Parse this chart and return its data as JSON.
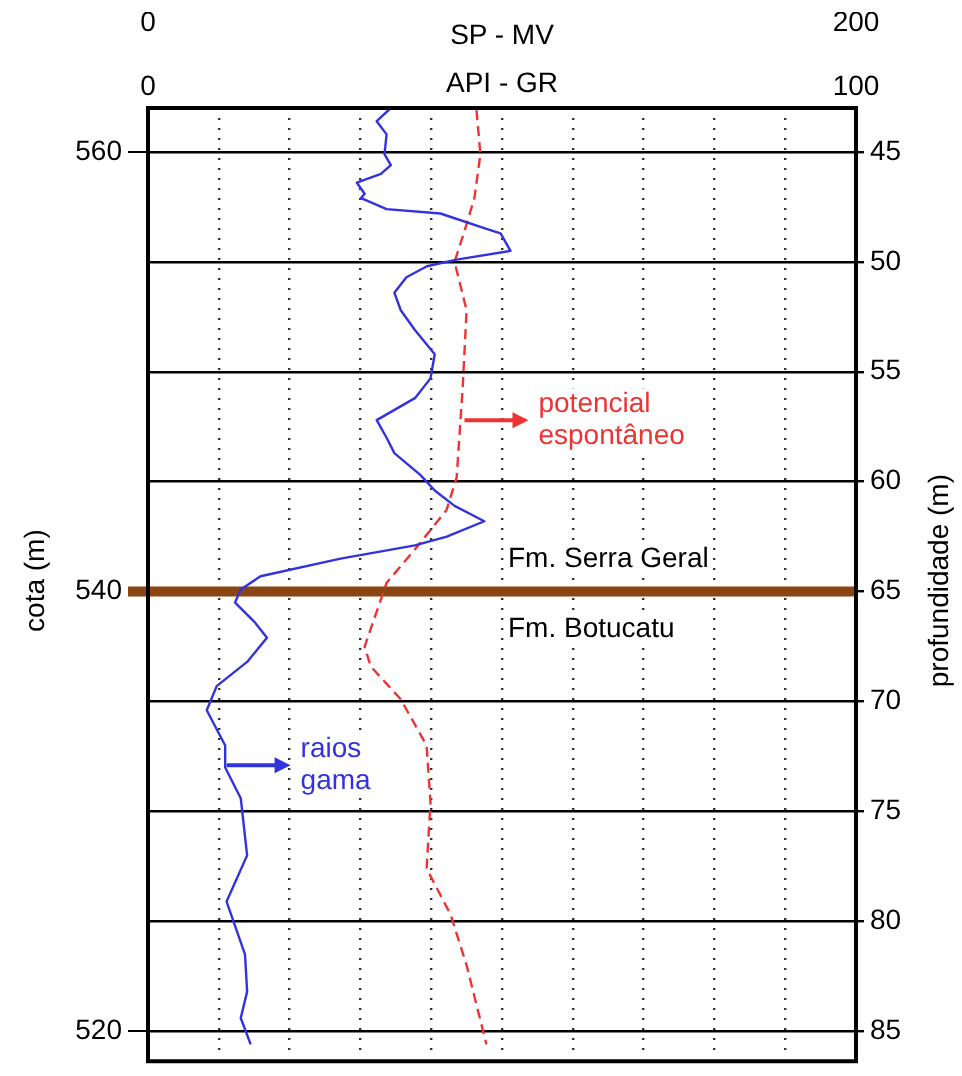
{
  "chart_data": {
    "type": "line",
    "xlabel": "API - GR",
    "x2label": "SP - MV",
    "ylabel": "cota (m)",
    "y2label": "profundidade (m)",
    "xlim": [
      0,
      100
    ],
    "xticks": [
      0,
      {
        "value": 10,
        "label": null
      },
      {
        "value": 20,
        "label": null
      },
      {
        "value": 30,
        "label": null
      },
      {
        "value": 40,
        "label": null
      },
      {
        "value": 50,
        "label": null
      },
      {
        "value": 60,
        "label": null
      },
      {
        "value": 70,
        "label": null
      },
      {
        "value": 80,
        "label": null
      },
      {
        "value": 90,
        "label": null
      },
      100
    ],
    "x2lim": [
      0,
      200
    ],
    "x2ticks": [
      0,
      200
    ],
    "ylim": [
      519,
      562
    ],
    "yticks": [
      520,
      540,
      560
    ],
    "y2lim": [
      86,
      43
    ],
    "y2ticks": [
      45,
      50,
      55,
      60,
      65,
      70,
      75,
      80,
      85
    ],
    "grid": true,
    "legend": false,
    "marker": "none",
    "series": [
      {
        "color": "#3333dd",
        "line_style": "solid",
        "x": [
          34.3,
          32.3,
          33.7,
          33.4,
          34.3,
          32.9,
          29.5,
          30.6,
          30.1,
          33.7,
          41.3,
          47.8,
          49.8,
          51.2,
          43.6,
          39.4,
          36.5,
          34.8,
          35.7,
          37.7,
          40.5,
          39.9,
          37.7,
          32.3,
          33.7,
          34.8,
          38.5,
          40.5,
          43.3,
          47.5,
          42.2,
          37.7,
          27.2,
          15.9,
          13.1,
          12.3,
          15.1,
          16.8,
          14.0,
          9.7,
          8.3,
          10.9,
          10.9,
          13.1,
          14.0,
          11.1,
          13.7,
          14.0,
          13.1,
          14.5
        ],
        "values": [
          562.0,
          561.4,
          560.8,
          559.9,
          559.4,
          559.0,
          558.6,
          558.1,
          557.9,
          557.4,
          557.2,
          556.5,
          556.3,
          555.5,
          555.1,
          554.8,
          554.3,
          553.6,
          552.8,
          551.9,
          550.8,
          549.7,
          548.8,
          547.8,
          547.0,
          546.3,
          545.3,
          544.6,
          543.9,
          543.2,
          542.5,
          542.1,
          541.5,
          540.7,
          540.1,
          539.5,
          538.6,
          537.9,
          536.8,
          535.7,
          534.6,
          533.0,
          532.0,
          530.6,
          528.0,
          525.9,
          523.5,
          521.8,
          520.6,
          519.4
        ]
      },
      {
        "color": "#ee3333",
        "line_style": "dashed",
        "axis": "x2",
        "x": [
          92.8,
          93.9,
          92.2,
          89.4,
          86.6,
          90.0,
          88.9,
          87.2,
          84.3,
          75.3,
          67.4,
          61.2,
          62.9,
          71.4,
          78.7,
          79.8,
          78.7,
          85.5,
          90.0,
          95.6
        ],
        "values": [
          561.9,
          559.9,
          557.9,
          556.4,
          555.0,
          552.8,
          549.3,
          545.2,
          543.7,
          541.9,
          540.4,
          537.5,
          536.6,
          535.1,
          533.0,
          530.4,
          527.4,
          525.3,
          523.0,
          519.4
        ]
      }
    ],
    "ref_lines": [
      {
        "axis": "y",
        "value": 540,
        "color": "#8b4513"
      }
    ],
    "annotations": [
      {
        "text": "raios\ngama",
        "x": 11.1,
        "y": 532.1
      },
      {
        "text": "potencial\nespontâneo",
        "x": 44.7,
        "y": 547.8
      },
      "Fm. Serra Geral",
      "Fm. Botucatu"
    ]
  }
}
